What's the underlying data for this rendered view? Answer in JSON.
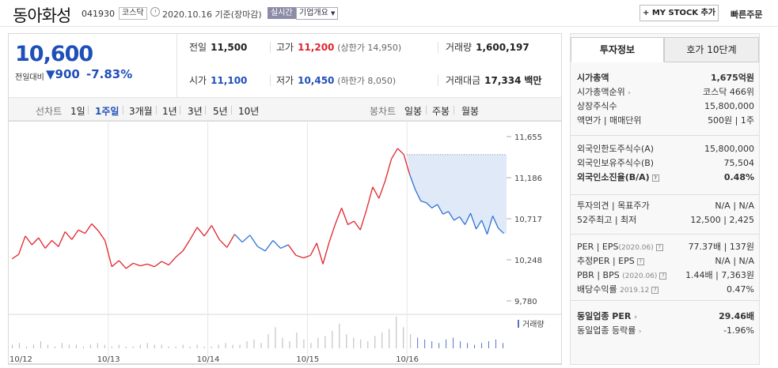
{
  "header": {
    "title": "동아화성",
    "code": "041930",
    "market": "코스닥",
    "date": "2020.10.16 기준(장마감)",
    "live": "실시간",
    "company": "기업개요",
    "mystock": "+ MY STOCK 추가",
    "quick": "빠른주문"
  },
  "price": {
    "current": "10,600",
    "change_label": "전일대비",
    "change": "900",
    "change_pct": "-7.83%"
  },
  "quotes": {
    "prev": {
      "label": "전일",
      "value": "11,500"
    },
    "high": {
      "label": "고가",
      "value": "11,200",
      "sub": "(상한가 14,950)"
    },
    "volume": {
      "label": "거래량",
      "value": "1,600,197"
    },
    "open": {
      "label": "시가",
      "value": "11,100"
    },
    "low": {
      "label": "저가",
      "value": "10,450",
      "sub": "(하한가 8,050)"
    },
    "amount": {
      "label": "거래대금",
      "value": "17,334",
      "unit": "백만"
    }
  },
  "periods": {
    "label": "선차트",
    "items": [
      "1일",
      "1주일",
      "3개월",
      "1년",
      "3년",
      "5년",
      "10년"
    ],
    "selected": "1주일",
    "candle_label": "봉차트",
    "candle_items": [
      "일봉",
      "주봉",
      "월봉"
    ]
  },
  "chart_data": {
    "type": "line",
    "x_labels": [
      "10/12",
      "10/13",
      "10/14",
      "10/15",
      "10/16"
    ],
    "y_ticks": [
      "11,655",
      "11,186",
      "10,717",
      "10,248",
      "9,780"
    ],
    "ylim": [
      9780,
      11655
    ],
    "volume_label": "거래량",
    "up_color": "#e0252b",
    "down_color": "#2e72d2",
    "series": [
      {
        "values": [
          10260,
          10310,
          10520,
          10420,
          10500,
          10380,
          10470,
          10400,
          10570,
          10480,
          10590,
          10550,
          10660,
          10580,
          10470
        ]
      },
      {
        "values": [
          10170,
          10240,
          10150,
          10210,
          10180,
          10200,
          10170,
          10230,
          10190,
          10280,
          10350,
          10480,
          10620,
          10520
        ]
      },
      {
        "values": [
          10640,
          10480,
          10390,
          10540,
          10450,
          10530,
          10400,
          10350,
          10470,
          10380,
          10420,
          10300,
          10270
        ]
      },
      {
        "values": [
          10300,
          10440,
          10200,
          10450,
          10660,
          10840,
          10650,
          10690,
          10590,
          10820,
          11080,
          10950,
          11150,
          11400,
          11520,
          11450
        ]
      },
      {
        "values": [
          11220,
          11050,
          10920,
          10900,
          10840,
          10880,
          10770,
          10800,
          10700,
          10740,
          10650,
          10780,
          10600,
          10700,
          10540,
          10750,
          10610,
          10550
        ]
      }
    ],
    "volume": [
      2,
      3,
      1,
      2,
      4,
      2,
      1,
      3,
      2,
      2,
      1,
      2,
      3,
      2,
      1,
      2,
      1,
      1,
      2,
      3,
      2,
      2,
      1,
      1,
      2,
      1,
      2,
      1,
      1,
      2,
      3,
      2,
      2,
      4,
      5,
      3,
      8,
      12,
      6,
      4,
      9,
      5,
      3,
      6,
      7,
      10,
      14,
      8,
      6,
      5,
      4,
      7,
      9,
      11,
      18,
      12,
      8,
      6,
      5,
      4,
      3,
      5,
      6,
      4,
      3,
      2,
      3,
      4,
      5,
      3
    ]
  },
  "tabs": {
    "invest": "투자정보",
    "level10": "호가 10단계"
  },
  "info": {
    "mcap": {
      "label": "시가총액",
      "value": "1,675억원"
    },
    "rank": {
      "label": "시가총액순위",
      "value": "코스닥 466위"
    },
    "shares": {
      "label": "상장주식수",
      "value": "15,800,000"
    },
    "face": {
      "label": "액면가 | 매매단위",
      "value": "500원 | 1주"
    },
    "foreign_limit": {
      "label": "외국인한도주식수(A)",
      "value": "15,800,000"
    },
    "foreign_hold": {
      "label": "외국인보유주식수(B)",
      "value": "75,504"
    },
    "foreign_ratio": {
      "label": "외국인소진율(B/A)",
      "value": "0.48%"
    },
    "opinion": {
      "label": "투자의견 | 목표주가",
      "value": "N/A | N/A"
    },
    "w52": {
      "label": "52주최고 | 최저",
      "value": "12,500 | 2,425"
    },
    "per": {
      "label": "PER | EPS",
      "period": "(2020.06)",
      "value": "77.37배 | 137원"
    },
    "eper": {
      "label": "추정PER | EPS",
      "value": "N/A | N/A"
    },
    "pbr": {
      "label": "PBR | BPS",
      "period": "(2020.06)",
      "value": "1.44배 | 7,363원"
    },
    "div": {
      "label": "배당수익률",
      "period": "2019.12",
      "value": "0.47%"
    },
    "ind_per": {
      "label": "동일업종 PER",
      "value": "29.46배"
    },
    "ind_rate": {
      "label": "동일업종 등락률",
      "value": "-1.96%"
    }
  }
}
